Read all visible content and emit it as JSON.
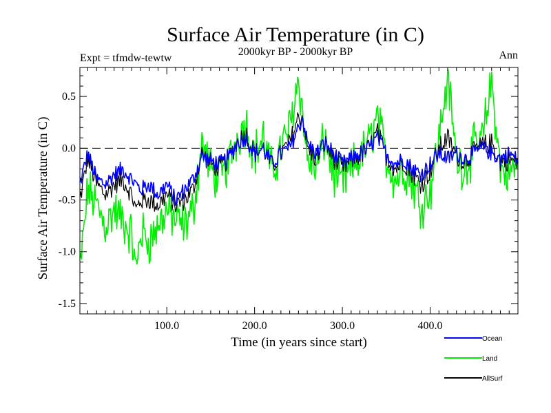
{
  "chart_data": {
    "type": "line",
    "title": "Surface Air Temperature (in C)",
    "subtitle": "2000kyr BP - 2000kyr BP",
    "expt_label": "Expt = tfmdw-tewtw",
    "period_label": "Ann",
    "xlabel": "Time (in years since start)",
    "ylabel": "Surface Air Temperature (in C)",
    "xlim": [
      1,
      500
    ],
    "ylim": [
      -1.6,
      0.78
    ],
    "x_ticks": [
      100,
      200,
      300,
      400
    ],
    "x_tick_labels": [
      "100.0",
      "200.0",
      "300.0",
      "400.0"
    ],
    "y_ticks": [
      -1.5,
      -1.0,
      -0.5,
      0.0,
      0.5
    ],
    "y_tick_labels": [
      "-1.5",
      "-1.0",
      "-0.5",
      "0.0",
      "0.5"
    ],
    "reference_line": {
      "y": 0.0,
      "style": "dashed"
    },
    "legend": {
      "placement": "bottom-right"
    },
    "x_sample_years": [
      1,
      10,
      20,
      30,
      40,
      50,
      60,
      65,
      70,
      80,
      90,
      100,
      110,
      120,
      130,
      140,
      150,
      160,
      170,
      180,
      190,
      200,
      210,
      220,
      230,
      240,
      250,
      255,
      260,
      270,
      280,
      290,
      300,
      310,
      320,
      330,
      340,
      350,
      360,
      370,
      380,
      390,
      400,
      410,
      420,
      430,
      440,
      450,
      460,
      470,
      480,
      490,
      500
    ],
    "series": [
      {
        "name": "Ocean",
        "color": "#0000ff",
        "values": [
          -0.35,
          -0.05,
          -0.3,
          -0.35,
          -0.25,
          -0.2,
          -0.3,
          -0.35,
          -0.4,
          -0.35,
          -0.45,
          -0.35,
          -0.5,
          -0.4,
          -0.3,
          -0.08,
          -0.12,
          -0.15,
          -0.1,
          0.05,
          0.1,
          -0.05,
          0.0,
          -0.15,
          -0.05,
          0.0,
          0.2,
          0.3,
          0.05,
          -0.05,
          0.05,
          -0.05,
          -0.15,
          -0.1,
          -0.05,
          0.0,
          0.1,
          -0.05,
          -0.15,
          -0.1,
          -0.2,
          -0.25,
          -0.15,
          -0.05,
          -0.1,
          -0.05,
          -0.1,
          -0.05,
          0.0,
          -0.05,
          -0.1,
          -0.05,
          -0.12
        ]
      },
      {
        "name": "Land",
        "color": "#00ee00",
        "values": [
          -1.2,
          -0.4,
          -0.55,
          -0.75,
          -0.6,
          -0.7,
          -0.85,
          -1.2,
          -0.8,
          -0.9,
          -0.75,
          -0.6,
          -0.7,
          -0.75,
          -0.6,
          0.05,
          -0.2,
          -0.3,
          -0.15,
          0.1,
          0.25,
          -0.05,
          0.1,
          -0.25,
          0.0,
          0.2,
          0.7,
          0.3,
          -0.1,
          -0.2,
          0.1,
          -0.25,
          -0.35,
          -0.2,
          -0.1,
          0.05,
          0.3,
          -0.1,
          -0.3,
          -0.2,
          -0.35,
          -0.55,
          -0.4,
          0.1,
          0.7,
          -0.1,
          -0.2,
          0.0,
          0.1,
          0.65,
          -0.2,
          -0.25,
          -0.15
        ]
      },
      {
        "name": "AllSurf",
        "color": "#000000",
        "values": [
          -0.5,
          -0.1,
          -0.35,
          -0.45,
          -0.35,
          -0.3,
          -0.45,
          -0.6,
          -0.5,
          -0.5,
          -0.55,
          -0.45,
          -0.55,
          -0.5,
          -0.4,
          -0.05,
          -0.15,
          -0.2,
          -0.1,
          0.05,
          0.15,
          -0.05,
          0.0,
          -0.18,
          -0.05,
          0.05,
          0.3,
          0.3,
          0.0,
          -0.1,
          0.05,
          -0.1,
          -0.2,
          -0.12,
          -0.07,
          0.0,
          0.15,
          -0.07,
          -0.2,
          -0.13,
          -0.25,
          -0.35,
          -0.22,
          0.0,
          0.1,
          -0.07,
          -0.13,
          -0.03,
          0.03,
          0.05,
          -0.13,
          -0.12,
          -0.13
        ]
      }
    ]
  }
}
